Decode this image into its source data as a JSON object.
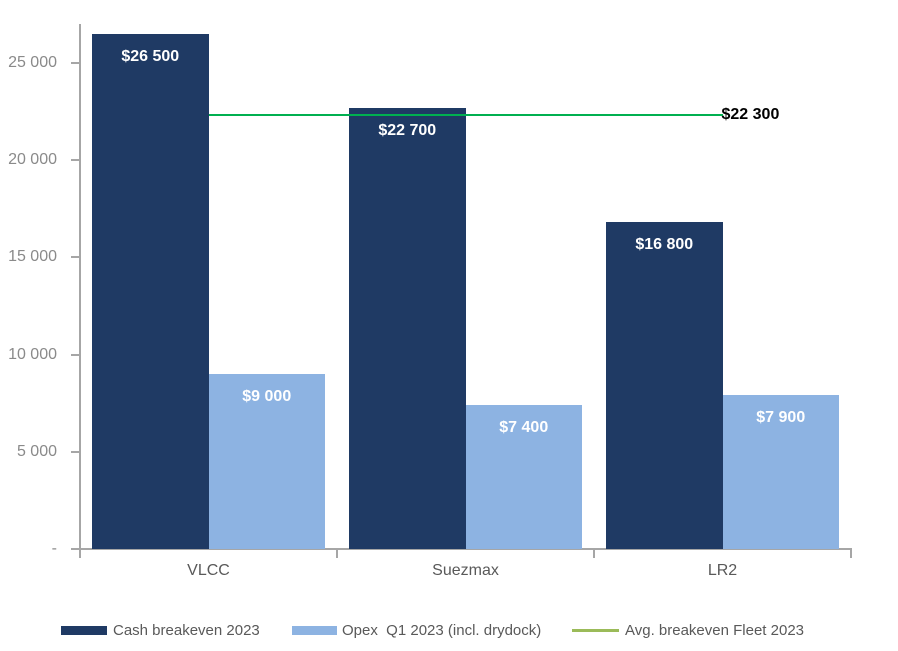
{
  "chart_data": {
    "type": "bar",
    "title": "",
    "categories": [
      "VLCC",
      "Suezmax",
      "LR2"
    ],
    "series": [
      {
        "name": "Cash breakeven 2023",
        "chart_type": "bar",
        "color": "#1f3a64",
        "values": [
          26500,
          22700,
          16800
        ],
        "value_labels": [
          "$26 500",
          "$22 700",
          "$16 800"
        ],
        "value_label_color": "#ffffff"
      },
      {
        "name": "Opex  Q1 2023 (incl. drydock)",
        "chart_type": "bar",
        "color": "#8db3e2",
        "values": [
          9000,
          7400,
          7900
        ],
        "value_labels": [
          "$9 000",
          "$7 400",
          "$7 900"
        ],
        "value_label_color": "#ffffff"
      },
      {
        "name": "Avg. breakeven Fleet 2023",
        "chart_type": "line",
        "color": "#00b050",
        "legend_swatch_color": "#9bbb59",
        "values": [
          22300,
          22300,
          22300
        ],
        "value_label": "$22 300",
        "value_label_color": "#000000"
      }
    ],
    "ylim": [
      0,
      27000
    ],
    "yticks": [
      {
        "value": 0,
        "label": "-"
      },
      {
        "value": 5000,
        "label": "5 000"
      },
      {
        "value": 10000,
        "label": "10 000"
      },
      {
        "value": 15000,
        "label": "15 000"
      },
      {
        "value": 20000,
        "label": "20 000"
      },
      {
        "value": 25000,
        "label": "25 000"
      }
    ],
    "grid": false,
    "legend_position": "bottom",
    "axis_color": "#a6a6a6",
    "tick_label_color": "#8a8a8a",
    "category_label_color": "#595959",
    "legend_text_color": "#595959"
  }
}
